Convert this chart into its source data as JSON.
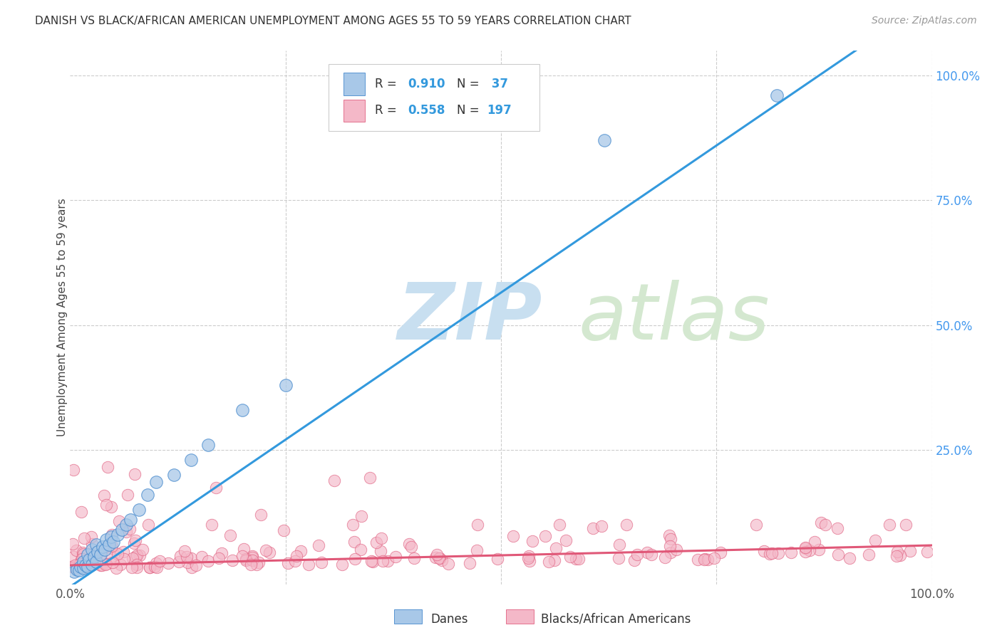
{
  "title": "DANISH VS BLACK/AFRICAN AMERICAN UNEMPLOYMENT AMONG AGES 55 TO 59 YEARS CORRELATION CHART",
  "source": "Source: ZipAtlas.com",
  "ylabel": "Unemployment Among Ages 55 to 59 years",
  "xlim": [
    0,
    1.0
  ],
  "ylim": [
    -0.02,
    1.05
  ],
  "blue_R": 0.91,
  "blue_N": 37,
  "pink_R": 0.558,
  "pink_N": 197,
  "blue_color": "#a8c8e8",
  "pink_color": "#f4b8c8",
  "blue_edge_color": "#4488cc",
  "pink_edge_color": "#e06080",
  "blue_line_color": "#3399dd",
  "pink_line_color": "#e05878",
  "watermark_zip_color": "#c8dff0",
  "watermark_atlas_color": "#d4e8d0",
  "background_color": "#ffffff",
  "grid_color": "#cccccc",
  "title_color": "#333333",
  "source_color": "#999999",
  "axis_label_color": "#444444",
  "tick_color_x": "#555555",
  "tick_color_y": "#4499ee",
  "legend_label_danes": "Danes",
  "legend_label_blacks": "Blacks/African Americans",
  "blue_scatter_x": [
    0.005,
    0.008,
    0.01,
    0.012,
    0.015,
    0.015,
    0.018,
    0.02,
    0.02,
    0.022,
    0.025,
    0.025,
    0.028,
    0.03,
    0.03,
    0.032,
    0.035,
    0.038,
    0.04,
    0.042,
    0.045,
    0.048,
    0.05,
    0.055,
    0.06,
    0.065,
    0.07,
    0.08,
    0.09,
    0.1,
    0.12,
    0.14,
    0.16,
    0.2,
    0.25,
    0.62,
    0.82
  ],
  "blue_scatter_y": [
    0.005,
    0.01,
    0.008,
    0.015,
    0.012,
    0.025,
    0.018,
    0.015,
    0.04,
    0.03,
    0.02,
    0.05,
    0.035,
    0.025,
    0.06,
    0.045,
    0.04,
    0.055,
    0.05,
    0.07,
    0.06,
    0.075,
    0.065,
    0.08,
    0.09,
    0.1,
    0.11,
    0.13,
    0.16,
    0.185,
    0.2,
    0.23,
    0.26,
    0.33,
    0.38,
    0.87,
    0.96
  ],
  "pink_scatter_seed": 42
}
